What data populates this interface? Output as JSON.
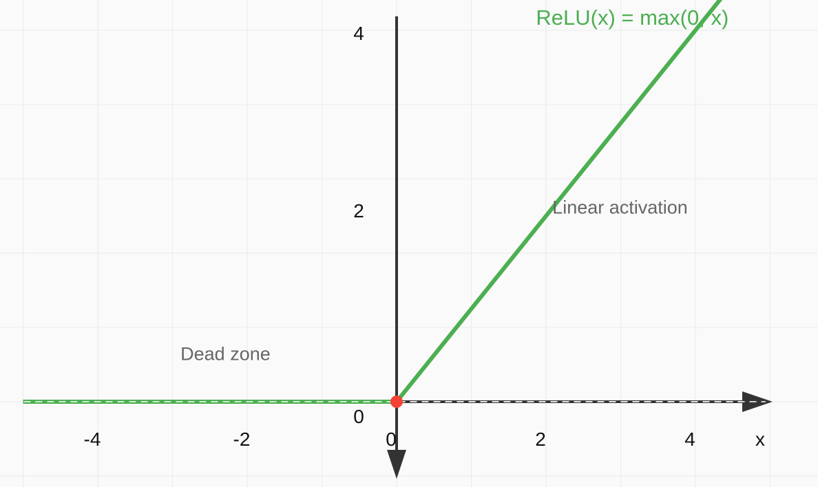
{
  "chart_data": {
    "type": "line",
    "title": "",
    "xlabel": "x",
    "ylabel": "",
    "xlim": [
      -5,
      5
    ],
    "ylim": [
      0,
      4
    ],
    "grid": true,
    "x_ticks": [
      {
        "value": -4,
        "label": "-4"
      },
      {
        "value": -2,
        "label": "-2"
      },
      {
        "value": 0,
        "label": "0"
      },
      {
        "value": 2,
        "label": "2"
      },
      {
        "value": 4,
        "label": "4"
      }
    ],
    "y_ticks": [
      {
        "value": 0,
        "label": "0"
      },
      {
        "value": 2,
        "label": "2"
      },
      {
        "value": 4,
        "label": "4"
      }
    ],
    "series": [
      {
        "name": "ReLU(x) = max(0, x)",
        "color": "#4caf50",
        "x": [
          -5,
          0,
          5
        ],
        "y": [
          0,
          0,
          5
        ]
      }
    ],
    "markers": [
      {
        "x": 0,
        "y": 0,
        "color": "#f44336"
      }
    ],
    "annotations": [
      {
        "text": "Dead zone",
        "x": -2.3,
        "y": 0.5
      },
      {
        "text": "Linear activation",
        "x": 3.0,
        "y": 2.1
      }
    ],
    "formula_label": {
      "text": "ReLU(x) = max(0, x)",
      "x": 3.1,
      "y": 4.15
    }
  },
  "colors": {
    "line": "#4caf50",
    "axis": "#333333",
    "grid": "#ebebeb",
    "origin": "#f44336",
    "annotation": "#666666",
    "background": "#fafafa"
  }
}
